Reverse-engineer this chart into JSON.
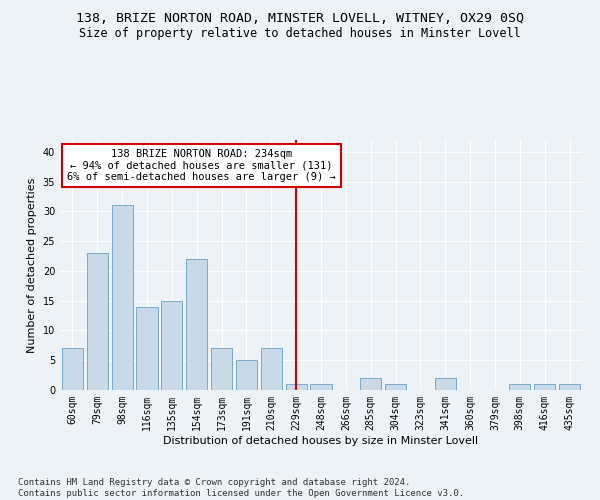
{
  "title": "138, BRIZE NORTON ROAD, MINSTER LOVELL, WITNEY, OX29 0SQ",
  "subtitle": "Size of property relative to detached houses in Minster Lovell",
  "xlabel": "Distribution of detached houses by size in Minster Lovell",
  "ylabel": "Number of detached properties",
  "footer_line1": "Contains HM Land Registry data © Crown copyright and database right 2024.",
  "footer_line2": "Contains public sector information licensed under the Open Government Licence v3.0.",
  "categories": [
    "60sqm",
    "79sqm",
    "98sqm",
    "116sqm",
    "135sqm",
    "154sqm",
    "173sqm",
    "191sqm",
    "210sqm",
    "229sqm",
    "248sqm",
    "266sqm",
    "285sqm",
    "304sqm",
    "323sqm",
    "341sqm",
    "360sqm",
    "379sqm",
    "398sqm",
    "416sqm",
    "435sqm"
  ],
  "values": [
    7,
    23,
    31,
    14,
    15,
    22,
    7,
    5,
    7,
    1,
    1,
    0,
    2,
    1,
    0,
    2,
    0,
    0,
    1,
    1,
    1
  ],
  "bar_color": "#c9d9e8",
  "bar_edge_color": "#7aaac8",
  "vline_color": "#cc0000",
  "vline_index": 9.5,
  "annotation_text_line1": "138 BRIZE NORTON ROAD: 234sqm",
  "annotation_text_line2": "← 94% of detached houses are smaller (131)",
  "annotation_text_line3": "6% of semi-detached houses are larger (9) →",
  "ylim": [
    0,
    42
  ],
  "yticks": [
    0,
    5,
    10,
    15,
    20,
    25,
    30,
    35,
    40
  ],
  "bg_color": "#edf2f7",
  "grid_color": "#ffffff",
  "title_fontsize": 9.5,
  "subtitle_fontsize": 8.5,
  "ylabel_fontsize": 8,
  "xlabel_fontsize": 8,
  "tick_fontsize": 7,
  "ann_fontsize": 7.5,
  "footer_fontsize": 6.5
}
